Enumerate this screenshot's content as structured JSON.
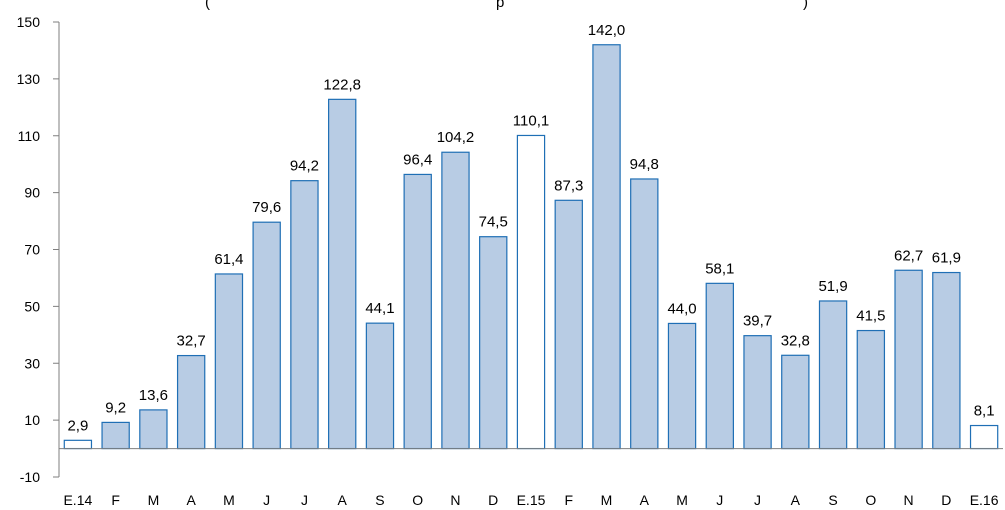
{
  "chart_data": {
    "type": "bar",
    "title_fragment_left": "(",
    "title_fragment_mid": "p",
    "title_fragment_right": ")",
    "categories": [
      "E.14",
      "F",
      "M",
      "A",
      "M",
      "J",
      "J",
      "A",
      "S",
      "O",
      "N",
      "D",
      "E.15",
      "F",
      "M",
      "A",
      "M",
      "J",
      "J",
      "A",
      "S",
      "O",
      "N",
      "D",
      "E.16"
    ],
    "values": [
      2.9,
      9.2,
      13.6,
      32.7,
      61.4,
      79.6,
      94.2,
      122.8,
      44.1,
      96.4,
      104.2,
      74.5,
      110.1,
      87.3,
      142.0,
      94.8,
      44.0,
      58.1,
      39.7,
      32.8,
      51.9,
      41.5,
      62.7,
      61.9,
      8.1
    ],
    "value_labels": [
      "2,9",
      "9,2",
      "13,6",
      "32,7",
      "61,4",
      "79,6",
      "94,2",
      "122,8",
      "44,1",
      "96,4",
      "104,2",
      "74,5",
      "110,1",
      "87,3",
      "142,0",
      "94,8",
      "44,0",
      "58,1",
      "39,7",
      "32,8",
      "51,9",
      "41,5",
      "62,7",
      "61,9",
      "8,1"
    ],
    "highlighted": [
      true,
      false,
      false,
      false,
      false,
      false,
      false,
      false,
      false,
      false,
      false,
      false,
      true,
      false,
      false,
      false,
      false,
      false,
      false,
      false,
      false,
      false,
      false,
      false,
      true
    ],
    "ylim": [
      -10,
      150
    ],
    "yticks": [
      -10,
      10,
      30,
      50,
      70,
      90,
      110,
      130,
      150
    ],
    "ytick_labels": [
      "-10",
      "10",
      "30",
      "50",
      "70",
      "90",
      "110",
      "130",
      "150"
    ],
    "colors": {
      "bar_fill": "#b8cce4",
      "bar_stroke": "#1f6fb5",
      "highlight_fill": "#ffffff",
      "axis": "#7f7f7f"
    },
    "grid": false,
    "legend": "none"
  }
}
